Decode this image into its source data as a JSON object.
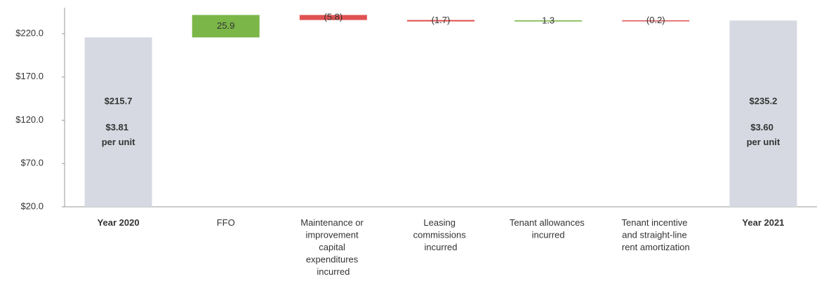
{
  "chart_data": {
    "type": "waterfall",
    "categories": [
      "Year 2020",
      "FFO",
      "Maintenance or improvement capital expenditures incurred",
      "Leasing commissions incurred",
      "Tenant allowances incurred",
      "Tenant incentive and straight-line rent amortization",
      "Year 2021"
    ],
    "measure": [
      "total",
      "relative",
      "relative",
      "relative",
      "relative",
      "relative",
      "total"
    ],
    "values": [
      215.7,
      25.9,
      -5.8,
      -1.7,
      1.3,
      -0.2,
      235.2
    ],
    "value_labels": [
      "$215.7",
      "25.9",
      "(5.8)",
      "(1.7)",
      "1.3",
      "(0.2)",
      "$235.2"
    ],
    "unit_labels": [
      "$3.81 per unit",
      null,
      null,
      null,
      null,
      null,
      "$3.60 per unit"
    ],
    "colors": {
      "total": "#d6d9e1",
      "increase": "#7ab648",
      "decrease": "#e05252"
    },
    "ylim": [
      20,
      250
    ],
    "yticks": [
      {
        "value": 20,
        "label": "$20.0"
      },
      {
        "value": 70,
        "label": "$70.0"
      },
      {
        "value": 120,
        "label": "$120.0"
      },
      {
        "value": 170,
        "label": "$170.0"
      },
      {
        "value": 220,
        "label": "$220.0"
      }
    ]
  }
}
